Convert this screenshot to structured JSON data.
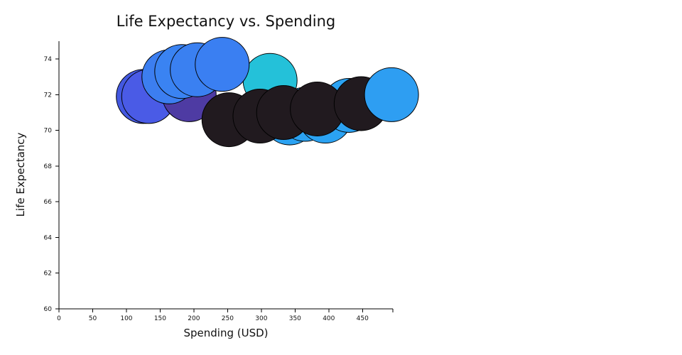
{
  "chart_data": {
    "type": "scatter",
    "title": "Life Expectancy vs. Spending",
    "xlabel": "Spending (USD)",
    "ylabel": "Life Expectancy",
    "xlim": [
      0,
      495
    ],
    "ylim": [
      60,
      75
    ],
    "xticks": [
      0,
      50,
      100,
      150,
      200,
      250,
      300,
      350,
      400,
      450
    ],
    "yticks": [
      60,
      62,
      64,
      66,
      68,
      70,
      72,
      74
    ],
    "grid": false,
    "legend": "none",
    "bubble_style": "uniform-size",
    "points": [
      {
        "x": 125,
        "y": 71.9,
        "color": "#4358E0"
      },
      {
        "x": 133,
        "y": 71.9,
        "color": "#4A5BE6"
      },
      {
        "x": 193,
        "y": 72.0,
        "color": "#4E3BA3"
      },
      {
        "x": 163,
        "y": 73.0,
        "color": "#3C7EF0"
      },
      {
        "x": 182,
        "y": 73.3,
        "color": "#3A83F2"
      },
      {
        "x": 205,
        "y": 73.4,
        "color": "#3A80F1"
      },
      {
        "x": 313,
        "y": 72.8,
        "color": "#24C1D9"
      },
      {
        "x": 342,
        "y": 70.7,
        "color": "#2BA2F2"
      },
      {
        "x": 365,
        "y": 70.9,
        "color": "#2BA2F2"
      },
      {
        "x": 395,
        "y": 70.8,
        "color": "#2BA2F2"
      },
      {
        "x": 430,
        "y": 71.4,
        "color": "#2BA2F2"
      },
      {
        "x": 252,
        "y": 70.6,
        "color": "#211A1F"
      },
      {
        "x": 298,
        "y": 70.8,
        "color": "#211A1F"
      },
      {
        "x": 333,
        "y": 71.0,
        "color": "#211A1F"
      },
      {
        "x": 383,
        "y": 71.2,
        "color": "#211A1F"
      },
      {
        "x": 448,
        "y": 71.5,
        "color": "#211A1F"
      },
      {
        "x": 242,
        "y": 73.7,
        "color": "#3A7FF2"
      },
      {
        "x": 493,
        "y": 72.0,
        "color": "#2E9EF2"
      }
    ]
  }
}
